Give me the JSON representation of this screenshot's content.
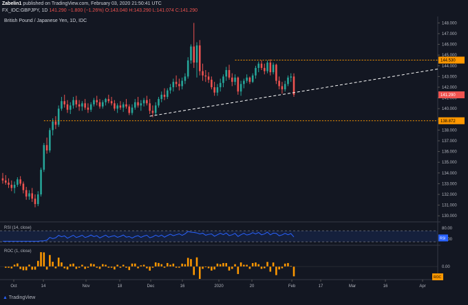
{
  "header": {
    "author": "Zabelin1",
    "published": "published on TradingView.com, February 03, 2020 21:50:41 UTC",
    "symbol": "FX_IDC:GBPJPY, 1D",
    "last": "141.290",
    "change": "−1.800 (−1.26%)",
    "ohlc": "O:143.040  H:143.290  L:141.074  C:141.290"
  },
  "chart_title": "British Pound / Japanese Yen, 1D, IDC",
  "footer": {
    "brand": "TradingView"
  },
  "colors": {
    "up": "#26a69a",
    "down": "#ef5350",
    "level": "#ff9800",
    "rsi": "#2962ff",
    "roc": "#ff9800",
    "bg": "#131722",
    "grid": "#2a2e39"
  },
  "chart_data": {
    "type": "candlestick",
    "price_axis": {
      "ticks": [
        130,
        131,
        132,
        133,
        134,
        135,
        136,
        137,
        138,
        139,
        140,
        141,
        142,
        143,
        144,
        145,
        146,
        147,
        148
      ],
      "labels": [
        "130.000",
        "131.000",
        "132.000",
        "133.000",
        "134.000",
        "135.000",
        "136.000",
        "137.000",
        "138.000",
        "139.000",
        "140.000",
        "141.000",
        "142.000",
        "143.000",
        "144.000",
        "145.000",
        "146.000",
        "147.000",
        "148.000"
      ],
      "range": [
        129.5,
        148.6
      ]
    },
    "time_axis": {
      "labels": [
        "Oct",
        "14",
        "Nov",
        "18",
        "Dec",
        "16",
        "2020",
        "20",
        "Feb",
        "17",
        "Mar",
        "16",
        "Apr"
      ]
    },
    "candles": [
      [
        133.5,
        134.0,
        133.0,
        133.3
      ],
      [
        133.3,
        133.8,
        132.9,
        133.1
      ],
      [
        133.1,
        133.5,
        132.6,
        132.9
      ],
      [
        132.9,
        133.3,
        132.3,
        132.6
      ],
      [
        132.6,
        133.2,
        132.1,
        132.9
      ],
      [
        132.9,
        133.6,
        132.7,
        133.4
      ],
      [
        133.4,
        133.7,
        132.8,
        133.0
      ],
      [
        133.0,
        133.2,
        132.1,
        132.4
      ],
      [
        132.4,
        132.7,
        131.5,
        131.8
      ],
      [
        131.8,
        132.4,
        131.5,
        132.1
      ],
      [
        132.1,
        132.6,
        131.3,
        131.6
      ],
      [
        131.6,
        132.0,
        130.8,
        131.1
      ],
      [
        131.1,
        132.3,
        130.9,
        132.0
      ],
      [
        132.0,
        134.5,
        131.8,
        134.3
      ],
      [
        134.3,
        136.8,
        134.1,
        136.6
      ],
      [
        136.6,
        137.3,
        135.8,
        136.1
      ],
      [
        136.1,
        138.2,
        135.9,
        138.0
      ],
      [
        138.0,
        139.1,
        137.5,
        138.8
      ],
      [
        138.8,
        139.3,
        138.1,
        138.5
      ],
      [
        138.5,
        140.3,
        138.3,
        140.0
      ],
      [
        140.0,
        141.1,
        139.8,
        140.7
      ],
      [
        140.7,
        141.3,
        140.1,
        140.4
      ],
      [
        140.4,
        140.8,
        139.6,
        139.9
      ],
      [
        139.9,
        140.6,
        139.5,
        140.3
      ],
      [
        140.3,
        141.1,
        140.0,
        140.8
      ],
      [
        140.8,
        141.2,
        140.1,
        140.4
      ],
      [
        140.4,
        140.8,
        139.8,
        140.2
      ],
      [
        140.2,
        140.7,
        139.8,
        140.5
      ],
      [
        140.5,
        140.9,
        139.9,
        140.1
      ],
      [
        140.1,
        140.5,
        139.6,
        139.9
      ],
      [
        139.9,
        140.6,
        139.7,
        140.4
      ],
      [
        140.4,
        141.0,
        140.2,
        140.8
      ],
      [
        140.8,
        141.2,
        140.3,
        140.6
      ],
      [
        140.6,
        140.9,
        140.0,
        140.2
      ],
      [
        140.2,
        140.8,
        140.0,
        140.6
      ],
      [
        140.6,
        141.0,
        140.3,
        140.9
      ],
      [
        140.9,
        141.3,
        140.5,
        140.7
      ],
      [
        140.7,
        141.1,
        140.3,
        140.5
      ],
      [
        140.5,
        140.8,
        139.8,
        140.0
      ],
      [
        140.0,
        140.5,
        139.6,
        140.3
      ],
      [
        140.3,
        140.7,
        139.9,
        140.1
      ],
      [
        140.1,
        140.6,
        139.7,
        140.4
      ],
      [
        140.4,
        140.9,
        140.0,
        140.2
      ],
      [
        140.2,
        140.4,
        139.4,
        139.6
      ],
      [
        139.6,
        140.4,
        139.4,
        140.1
      ],
      [
        140.1,
        140.9,
        139.9,
        140.6
      ],
      [
        140.6,
        141.1,
        140.1,
        140.3
      ],
      [
        140.3,
        140.8,
        139.8,
        140.5
      ],
      [
        140.5,
        141.0,
        140.2,
        140.8
      ],
      [
        140.8,
        141.2,
        140.3,
        140.5
      ],
      [
        140.5,
        140.9,
        139.5,
        139.8
      ],
      [
        139.8,
        140.3,
        139.2,
        139.6
      ],
      [
        139.6,
        140.6,
        139.4,
        140.3
      ],
      [
        140.3,
        141.1,
        140.1,
        140.9
      ],
      [
        140.9,
        141.6,
        140.6,
        141.3
      ],
      [
        141.3,
        141.9,
        140.8,
        141.1
      ],
      [
        141.1,
        141.9,
        140.9,
        141.7
      ],
      [
        141.7,
        142.3,
        141.4,
        142.0
      ],
      [
        142.0,
        142.8,
        141.6,
        142.5
      ],
      [
        142.5,
        143.1,
        142.0,
        142.3
      ],
      [
        142.3,
        142.8,
        141.7,
        142.1
      ],
      [
        142.1,
        142.9,
        141.8,
        142.6
      ],
      [
        142.6,
        143.3,
        142.3,
        143.0
      ],
      [
        143.0,
        144.8,
        142.8,
        144.5
      ],
      [
        144.5,
        146.0,
        144.2,
        145.8
      ],
      [
        145.8,
        148.0,
        143.8,
        144.3
      ],
      [
        144.3,
        146.2,
        142.9,
        145.9
      ],
      [
        145.9,
        146.4,
        143.1,
        143.5
      ],
      [
        143.5,
        144.2,
        142.6,
        143.1
      ],
      [
        143.1,
        143.6,
        142.5,
        143.0
      ],
      [
        143.0,
        143.4,
        142.4,
        142.7
      ],
      [
        142.7,
        143.0,
        141.8,
        142.0
      ],
      [
        142.0,
        142.5,
        141.2,
        141.5
      ],
      [
        141.5,
        142.3,
        141.2,
        142.0
      ],
      [
        142.0,
        142.8,
        141.6,
        142.4
      ],
      [
        142.4,
        143.2,
        142.0,
        143.0
      ],
      [
        143.0,
        143.9,
        142.6,
        143.6
      ],
      [
        143.6,
        144.1,
        142.7,
        142.9
      ],
      [
        142.9,
        143.3,
        142.1,
        142.5
      ],
      [
        142.5,
        143.2,
        142.2,
        142.9
      ],
      [
        142.9,
        143.0,
        141.3,
        141.6
      ],
      [
        141.6,
        142.6,
        141.2,
        142.3
      ],
      [
        142.3,
        142.8,
        141.9,
        142.6
      ],
      [
        142.6,
        143.2,
        142.4,
        142.9
      ],
      [
        142.9,
        143.0,
        142.3,
        142.5
      ],
      [
        142.5,
        143.3,
        142.4,
        143.1
      ],
      [
        143.1,
        144.0,
        142.8,
        143.8
      ],
      [
        143.8,
        144.4,
        143.4,
        144.2
      ],
      [
        144.2,
        144.5,
        143.6,
        143.8
      ],
      [
        143.8,
        144.2,
        143.2,
        143.5
      ],
      [
        143.5,
        144.5,
        143.3,
        144.3
      ],
      [
        144.3,
        144.6,
        143.1,
        143.4
      ],
      [
        143.4,
        144.3,
        143.2,
        144.1
      ],
      [
        144.1,
        144.2,
        142.3,
        142.6
      ],
      [
        142.6,
        143.0,
        141.8,
        142.1
      ],
      [
        142.1,
        142.5,
        141.4,
        141.8
      ],
      [
        141.8,
        142.6,
        141.6,
        142.3
      ],
      [
        142.3,
        143.1,
        142.1,
        142.9
      ],
      [
        142.9,
        143.3,
        142.5,
        143.0
      ],
      [
        143.0,
        143.3,
        141.1,
        141.3
      ]
    ],
    "levels": [
      {
        "value": 144.53,
        "label": "144.530"
      },
      {
        "value": 138.872,
        "label": "138.872"
      }
    ],
    "trendline": {
      "from_index": 50,
      "from_value": 139.3,
      "to_index": 99,
      "to_value": 141.5
    },
    "price_label": {
      "value": 141.29,
      "label": "141.290"
    },
    "rsi": {
      "label": "RSI (14, close)",
      "ticks": [
        80,
        40
      ],
      "tick_labels": [
        "80.00",
        "40.00"
      ],
      "bands": [
        70,
        30
      ],
      "current_label": "RSI",
      "range": [
        20,
        100
      ]
    },
    "roc": {
      "label": "ROC (1, close)",
      "ticks": [
        0
      ],
      "tick_labels": [
        "0.00"
      ],
      "current_label": "ROC"
    }
  }
}
